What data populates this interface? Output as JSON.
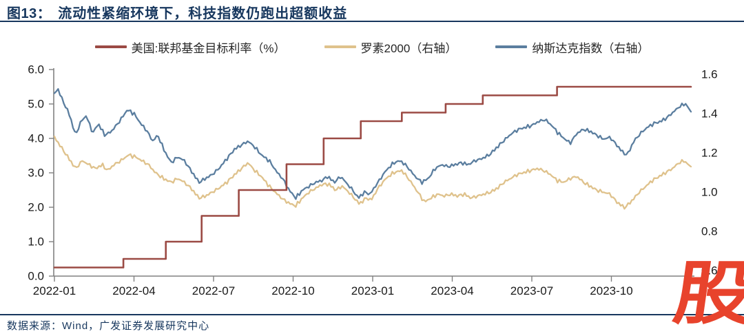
{
  "theme": {
    "navy": "#17375E",
    "logo_red": "#E8432C",
    "axis_gray": "#808080",
    "tick_text": "#1A1A1A",
    "legend_text": "#262626"
  },
  "header": {
    "figure_label": "图13：",
    "title": "流动性紧缩环境下，科技指数仍跑出超额收益"
  },
  "footer": {
    "source": "数据来源：Wind，广发证券发展研究中心"
  },
  "logo": {
    "glyph": "股"
  },
  "chart_data": {
    "type": "line",
    "title": "流动性紧缩环境下，科技指数仍跑出超额收益",
    "grid": false,
    "legend_position": "top",
    "x_axis": {
      "unit": "months-since-2022-01",
      "tick_labels": [
        "2022-01",
        "2022-04",
        "2022-07",
        "2022-10",
        "2023-01",
        "2023-04",
        "2023-07",
        "2023-10"
      ],
      "tick_months": [
        0,
        3,
        6,
        9,
        12,
        15,
        18,
        21
      ],
      "range_months": [
        0,
        24.05
      ]
    },
    "y_axis_left": {
      "tick_labels": [
        "6.0",
        "5.0",
        "4.0",
        "3.0",
        "2.0",
        "1.0",
        "0.0"
      ],
      "tick_values": [
        6,
        5,
        4,
        3,
        2,
        1,
        0
      ],
      "range": [
        0,
        6
      ]
    },
    "y_axis_right": {
      "tick_labels": [
        "1.6",
        "1.4",
        "1.2",
        "1.0",
        "0.8",
        "0.6"
      ],
      "tick_values": [
        1.6,
        1.4,
        1.2,
        1.0,
        0.8,
        0.6
      ],
      "range": [
        0.572,
        1.625
      ]
    },
    "series": [
      {
        "name": "美国:联邦基金目标利率（%）",
        "axis": "left",
        "style": "step",
        "color": "#9B4A44",
        "points": [
          [
            0,
            0.25
          ],
          [
            2.6,
            0.25
          ],
          [
            2.6,
            0.5
          ],
          [
            4.2,
            0.5
          ],
          [
            4.2,
            1.0
          ],
          [
            5.55,
            1.0
          ],
          [
            5.55,
            1.75
          ],
          [
            6.95,
            1.75
          ],
          [
            6.95,
            2.5
          ],
          [
            8.75,
            2.5
          ],
          [
            8.75,
            3.25
          ],
          [
            10.15,
            3.25
          ],
          [
            10.15,
            4.0
          ],
          [
            11.55,
            4.0
          ],
          [
            11.55,
            4.5
          ],
          [
            13.1,
            4.5
          ],
          [
            13.1,
            4.75
          ],
          [
            14.75,
            4.75
          ],
          [
            14.75,
            5.0
          ],
          [
            16.15,
            5.0
          ],
          [
            16.15,
            5.25
          ],
          [
            18.95,
            5.25
          ],
          [
            18.95,
            5.5
          ],
          [
            24.0,
            5.5
          ]
        ]
      },
      {
        "name": "罗素2000（右轴）",
        "axis": "right",
        "style": "line",
        "color": "#DFC28C",
        "points": [
          [
            0,
            1.28
          ],
          [
            0.25,
            1.23
          ],
          [
            0.5,
            1.18
          ],
          [
            0.8,
            1.12
          ],
          [
            1.05,
            1.16
          ],
          [
            1.3,
            1.14
          ],
          [
            1.55,
            1.12
          ],
          [
            1.8,
            1.14
          ],
          [
            2.0,
            1.11
          ],
          [
            2.25,
            1.14
          ],
          [
            2.5,
            1.16
          ],
          [
            2.8,
            1.19
          ],
          [
            3.05,
            1.18
          ],
          [
            3.3,
            1.16
          ],
          [
            3.55,
            1.14
          ],
          [
            3.8,
            1.1
          ],
          [
            4.1,
            1.07
          ],
          [
            4.4,
            1.05
          ],
          [
            4.65,
            1.07
          ],
          [
            4.9,
            1.05
          ],
          [
            5.15,
            1.02
          ],
          [
            5.45,
            0.97
          ],
          [
            5.7,
            0.98
          ],
          [
            5.95,
            1.0
          ],
          [
            6.2,
            1.02
          ],
          [
            6.5,
            1.05
          ],
          [
            6.8,
            1.09
          ],
          [
            7.05,
            1.12
          ],
          [
            7.3,
            1.15
          ],
          [
            7.55,
            1.11
          ],
          [
            7.8,
            1.08
          ],
          [
            8.1,
            1.03
          ],
          [
            8.4,
            0.99
          ],
          [
            8.65,
            0.96
          ],
          [
            8.9,
            0.94
          ],
          [
            9.1,
            0.93
          ],
          [
            9.35,
            0.97
          ],
          [
            9.6,
            1.0
          ],
          [
            9.85,
            1.02
          ],
          [
            10.1,
            1.04
          ],
          [
            10.35,
            1.04
          ],
          [
            10.6,
            1.01
          ],
          [
            10.85,
            1.03
          ],
          [
            11.1,
            1.0
          ],
          [
            11.3,
            0.97
          ],
          [
            11.5,
            0.94
          ],
          [
            11.75,
            0.97
          ],
          [
            11.95,
            0.96
          ],
          [
            12.2,
            1.02
          ],
          [
            12.5,
            1.07
          ],
          [
            12.8,
            1.1
          ],
          [
            13.1,
            1.11
          ],
          [
            13.4,
            1.06
          ],
          [
            13.7,
            1.0
          ],
          [
            13.95,
            0.95
          ],
          [
            14.2,
            0.97
          ],
          [
            14.45,
            0.99
          ],
          [
            14.7,
            0.98
          ],
          [
            14.95,
            0.99
          ],
          [
            15.2,
            0.98
          ],
          [
            15.45,
            0.99
          ],
          [
            15.7,
            0.97
          ],
          [
            15.95,
            0.98
          ],
          [
            16.2,
            0.99
          ],
          [
            16.45,
            1.0
          ],
          [
            16.7,
            1.02
          ],
          [
            16.95,
            1.05
          ],
          [
            17.2,
            1.07
          ],
          [
            17.45,
            1.09
          ],
          [
            17.7,
            1.1
          ],
          [
            17.95,
            1.11
          ],
          [
            18.2,
            1.12
          ],
          [
            18.45,
            1.11
          ],
          [
            18.7,
            1.09
          ],
          [
            18.95,
            1.06
          ],
          [
            19.2,
            1.05
          ],
          [
            19.45,
            1.07
          ],
          [
            19.7,
            1.08
          ],
          [
            19.95,
            1.05
          ],
          [
            20.2,
            1.03
          ],
          [
            20.45,
            1.01
          ],
          [
            20.7,
            1.0
          ],
          [
            20.95,
            0.99
          ],
          [
            21.2,
            0.95
          ],
          [
            21.5,
            0.92
          ],
          [
            21.8,
            0.96
          ],
          [
            22.05,
            1.0
          ],
          [
            22.3,
            1.03
          ],
          [
            22.55,
            1.06
          ],
          [
            22.8,
            1.08
          ],
          [
            23.05,
            1.1
          ],
          [
            23.3,
            1.12
          ],
          [
            23.55,
            1.15
          ],
          [
            23.75,
            1.16
          ],
          [
            23.9,
            1.14
          ],
          [
            24.0,
            1.13
          ]
        ]
      },
      {
        "name": "纳斯达克指数（右轴）",
        "axis": "right",
        "style": "line",
        "color": "#5B7E9F",
        "points": [
          [
            0,
            1.5
          ],
          [
            0.12,
            1.53
          ],
          [
            0.3,
            1.47
          ],
          [
            0.55,
            1.4
          ],
          [
            0.8,
            1.29
          ],
          [
            1.0,
            1.36
          ],
          [
            1.2,
            1.39
          ],
          [
            1.45,
            1.3
          ],
          [
            1.65,
            1.35
          ],
          [
            1.9,
            1.29
          ],
          [
            2.15,
            1.31
          ],
          [
            2.45,
            1.36
          ],
          [
            2.75,
            1.42
          ],
          [
            3.0,
            1.4
          ],
          [
            3.25,
            1.35
          ],
          [
            3.5,
            1.31
          ],
          [
            3.7,
            1.26
          ],
          [
            3.9,
            1.29
          ],
          [
            4.15,
            1.21
          ],
          [
            4.4,
            1.15
          ],
          [
            4.65,
            1.18
          ],
          [
            4.9,
            1.16
          ],
          [
            5.15,
            1.11
          ],
          [
            5.45,
            1.05
          ],
          [
            5.7,
            1.07
          ],
          [
            5.95,
            1.09
          ],
          [
            6.2,
            1.12
          ],
          [
            6.5,
            1.17
          ],
          [
            6.8,
            1.22
          ],
          [
            7.05,
            1.24
          ],
          [
            7.3,
            1.26
          ],
          [
            7.55,
            1.23
          ],
          [
            7.8,
            1.19
          ],
          [
            8.1,
            1.16
          ],
          [
            8.4,
            1.1
          ],
          [
            8.6,
            1.07
          ],
          [
            8.85,
            1.01
          ],
          [
            9.1,
            0.97
          ],
          [
            9.35,
            1.01
          ],
          [
            9.6,
            1.03
          ],
          [
            9.85,
            1.05
          ],
          [
            10.1,
            1.06
          ],
          [
            10.3,
            1.08
          ],
          [
            10.55,
            1.05
          ],
          [
            10.8,
            1.08
          ],
          [
            11.05,
            1.04
          ],
          [
            11.25,
            1.01
          ],
          [
            11.45,
            0.97
          ],
          [
            11.7,
            1.0
          ],
          [
            11.9,
            0.99
          ],
          [
            12.2,
            1.05
          ],
          [
            12.5,
            1.11
          ],
          [
            12.8,
            1.15
          ],
          [
            13.05,
            1.16
          ],
          [
            13.3,
            1.13
          ],
          [
            13.6,
            1.08
          ],
          [
            13.85,
            1.05
          ],
          [
            14.1,
            1.07
          ],
          [
            14.35,
            1.12
          ],
          [
            14.6,
            1.14
          ],
          [
            14.85,
            1.13
          ],
          [
            15.1,
            1.14
          ],
          [
            15.35,
            1.15
          ],
          [
            15.6,
            1.14
          ],
          [
            15.85,
            1.16
          ],
          [
            16.1,
            1.17
          ],
          [
            16.4,
            1.19
          ],
          [
            16.7,
            1.23
          ],
          [
            17.0,
            1.27
          ],
          [
            17.25,
            1.3
          ],
          [
            17.5,
            1.32
          ],
          [
            17.75,
            1.33
          ],
          [
            18.0,
            1.34
          ],
          [
            18.25,
            1.36
          ],
          [
            18.5,
            1.37
          ],
          [
            18.75,
            1.34
          ],
          [
            19.0,
            1.3
          ],
          [
            19.25,
            1.27
          ],
          [
            19.45,
            1.25
          ],
          [
            19.7,
            1.3
          ],
          [
            19.95,
            1.32
          ],
          [
            20.2,
            1.31
          ],
          [
            20.45,
            1.29
          ],
          [
            20.7,
            1.27
          ],
          [
            20.95,
            1.28
          ],
          [
            21.2,
            1.24
          ],
          [
            21.45,
            1.2
          ],
          [
            21.6,
            1.19
          ],
          [
            21.85,
            1.26
          ],
          [
            22.1,
            1.3
          ],
          [
            22.35,
            1.33
          ],
          [
            22.6,
            1.35
          ],
          [
            22.85,
            1.36
          ],
          [
            23.1,
            1.38
          ],
          [
            23.35,
            1.41
          ],
          [
            23.6,
            1.44
          ],
          [
            23.8,
            1.45
          ],
          [
            23.9,
            1.43
          ],
          [
            24.0,
            1.41
          ]
        ]
      }
    ]
  }
}
